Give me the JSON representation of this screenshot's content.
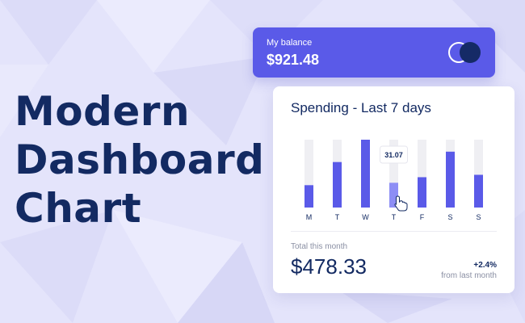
{
  "headline": {
    "lines": [
      "Modern",
      "Dashboard",
      "Chart"
    ]
  },
  "balance": {
    "label": "My balance",
    "value": "$921.48",
    "icon": "card-logo-icon"
  },
  "spending": {
    "title": "Spending - Last 7 days",
    "tooltip": "31.07",
    "total_label": "Total this month",
    "total_value": "$478.33",
    "change": "+2.4%",
    "change_label": "from last month"
  },
  "colors": {
    "accent": "#5a5ae8",
    "bar": "#5a5ae8",
    "bar_active": "#8d8ef5",
    "track": "#efeff3",
    "headline": "#132a62",
    "background": "#e4e4fb"
  },
  "chart_data": {
    "type": "bar",
    "categories": [
      "M",
      "T",
      "W",
      "T",
      "F",
      "S",
      "S"
    ],
    "values": [
      28,
      57,
      85,
      31,
      38,
      70,
      41
    ],
    "ylim": [
      0,
      85
    ],
    "highlight_index": 3,
    "grid": false
  }
}
